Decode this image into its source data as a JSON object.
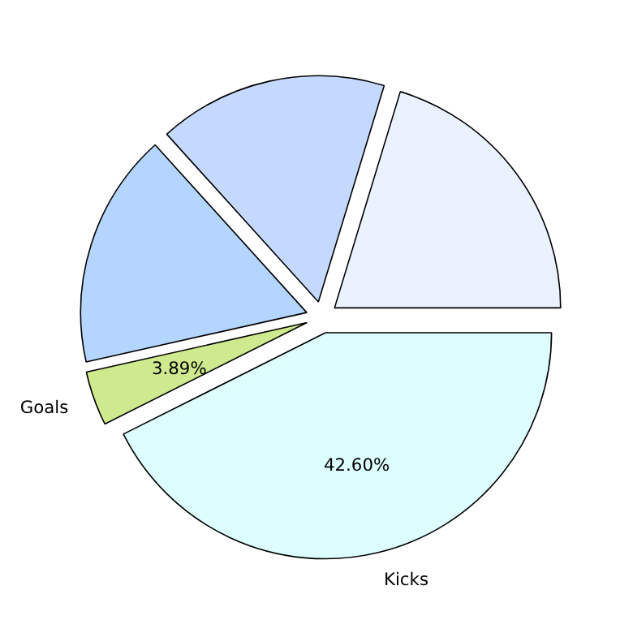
{
  "chart_data": {
    "type": "pie",
    "categories": [
      null,
      null,
      null,
      "Goals",
      "Kicks"
    ],
    "values": [
      20.3,
      16.4,
      16.81,
      3.89,
      42.6
    ],
    "colors": [
      "#eaf1ff",
      "#c5d9ff",
      "#b3d5ff",
      "#cfea8e",
      "#dcfeff"
    ],
    "value_labels": [
      null,
      null,
      null,
      "3.89%",
      "42.60%"
    ]
  }
}
